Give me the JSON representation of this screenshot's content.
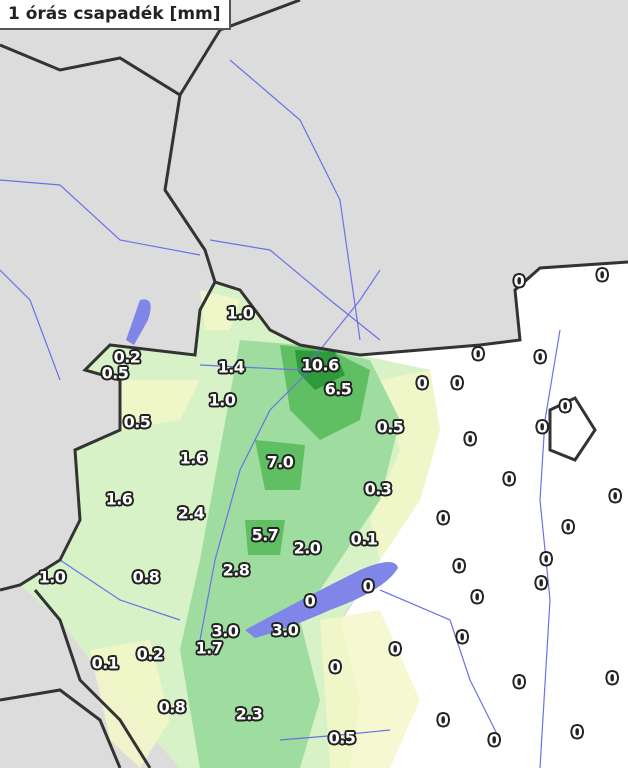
{
  "title": "1 órás csapadék [mm]",
  "colors": {
    "background": "#dcdcdc",
    "no_rain": "#ffffff",
    "light": "#f3f7c8",
    "medium": "#b8eab8",
    "heavy": "#5fc065",
    "very_heavy": "#2e9a3a",
    "water": "#7f86e8",
    "river": "#6a72e8",
    "border": "#333333"
  },
  "labels": [
    "1.0",
    "0.2",
    "0.5",
    "1.4",
    "10.6",
    "6.5",
    "1.0",
    "0.5",
    "0.5",
    "1.6",
    "7.0",
    "0.3",
    "1.6",
    "2.4",
    "5.7",
    "2.0",
    "0.1",
    "1.0",
    "0.8",
    "2.8",
    "0",
    "0",
    "3.0",
    "3.0",
    "1.7",
    "0.2",
    "0.1",
    "0",
    "0",
    "0.8",
    "2.3",
    "0.5",
    "0",
    "0",
    "0",
    "0",
    "0",
    "0",
    "0",
    "0",
    "0",
    "0",
    "0",
    "0",
    "0",
    "0",
    "0",
    "0",
    "0",
    "0",
    "0",
    "0",
    "0",
    "0",
    "0"
  ]
}
